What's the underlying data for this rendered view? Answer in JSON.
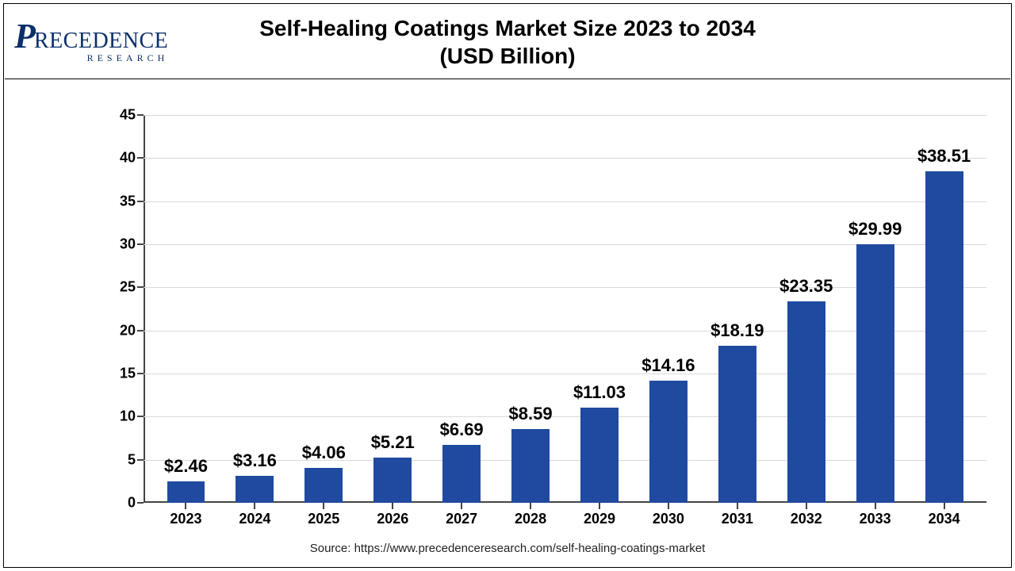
{
  "title": {
    "line1": "Self-Healing Coatings Market Size 2023 to 2034",
    "line2": "(USD Billion)",
    "fontsize": 28,
    "color": "#000000"
  },
  "logo": {
    "p_glyph": "P",
    "brand": "RECEDENCE",
    "sub": "RESEARCH",
    "color": "#0b2f6b"
  },
  "chart": {
    "type": "bar",
    "categories": [
      "2023",
      "2024",
      "2025",
      "2026",
      "2027",
      "2028",
      "2029",
      "2030",
      "2031",
      "2032",
      "2033",
      "2034"
    ],
    "values": [
      2.46,
      3.16,
      4.06,
      5.21,
      6.69,
      8.59,
      11.03,
      14.16,
      18.19,
      23.35,
      29.99,
      38.51
    ],
    "value_labels": [
      "$2.46",
      "$3.16",
      "$4.06",
      "$5.21",
      "$6.69",
      "$8.59",
      "$11.03",
      "$14.16",
      "$18.19",
      "$23.35",
      "$29.99",
      "$38.51"
    ],
    "bar_color": "#1f4aa0",
    "ylim": [
      0,
      45
    ],
    "ytick_step": 5,
    "yticks": [
      0,
      5,
      10,
      15,
      20,
      25,
      30,
      35,
      40,
      45
    ],
    "grid_color": "#d9d9d9",
    "axis_color": "#444444",
    "background_color": "#ffffff",
    "tick_label_fontsize": 18,
    "value_label_fontsize": 22,
    "bar_width_ratio": 0.55
  },
  "source": {
    "text": "Source: https://www.precedenceresearch.com/self-healing-coatings-market",
    "fontsize": 15,
    "color": "#222222"
  }
}
